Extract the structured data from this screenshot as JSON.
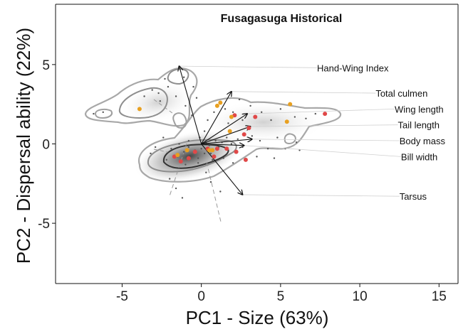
{
  "chart_data": {
    "type": "scatter",
    "title": "Fusagasuga Historical",
    "xlabel": "PC1 - Size (63%)",
    "ylabel": "PC2 - Dispersal ability (22%)",
    "xlim": [
      -9.2,
      16.2
    ],
    "ylim": [
      -8.8,
      8.8
    ],
    "x_ticks": [
      -5,
      0,
      5,
      10,
      15
    ],
    "y_ticks": [
      -5,
      0,
      5
    ],
    "grid": false,
    "colors": {
      "red_points": "#e04848",
      "orange_points": "#e8a020",
      "background_points": "#555555",
      "contour": "#9a9a9a",
      "core_contour": "#333333"
    },
    "vectors": [
      {
        "label": "Hand-Wing Index",
        "x": -1.4,
        "y": 4.9,
        "label_x": 7.3,
        "label_y": 4.8
      },
      {
        "label": "Total culmen",
        "x": 1.9,
        "y": 3.3,
        "label_x": 11.0,
        "label_y": 3.2
      },
      {
        "label": "Wing length",
        "x": 2.9,
        "y": 1.9,
        "label_x": 12.2,
        "label_y": 2.2
      },
      {
        "label": "Tail length",
        "x": 3.1,
        "y": 1.1,
        "label_x": 12.4,
        "label_y": 1.2
      },
      {
        "label": "Body mass",
        "x": 3.2,
        "y": 0.3,
        "label_x": 12.5,
        "label_y": 0.2
      },
      {
        "label": "Bill width",
        "x": 2.7,
        "y": -0.1,
        "label_x": 12.6,
        "label_y": -0.8
      },
      {
        "label": "Tarsus",
        "x": 2.6,
        "y": -3.2,
        "label_x": 12.5,
        "label_y": -3.3
      }
    ],
    "red_points": [
      [
        -1.3,
        -1.1
      ],
      [
        -0.8,
        -0.9
      ],
      [
        0.4,
        -0.3
      ],
      [
        0.8,
        -0.8
      ],
      [
        2.2,
        -0.5
      ],
      [
        2.8,
        -1.0
      ],
      [
        3.0,
        1.0
      ],
      [
        3.4,
        1.7
      ],
      [
        2.7,
        0.6
      ],
      [
        7.8,
        1.9
      ],
      [
        1.0,
        -0.3
      ],
      [
        -0.4,
        -0.5
      ],
      [
        1.6,
        -0.3
      ],
      [
        2.1,
        1.8
      ],
      [
        -1.7,
        -0.8
      ]
    ],
    "orange_points": [
      [
        -3.9,
        2.2
      ],
      [
        1.0,
        2.4
      ],
      [
        1.2,
        2.6
      ],
      [
        1.9,
        1.7
      ],
      [
        5.6,
        2.5
      ],
      [
        5.4,
        1.4
      ],
      [
        0.5,
        -0.4
      ],
      [
        -0.9,
        -0.4
      ],
      [
        -1.5,
        -0.7
      ],
      [
        1.8,
        0.8
      ],
      [
        0.7,
        -0.4
      ]
    ],
    "background_points": [
      [
        -1.9,
        -0.3
      ],
      [
        -1.5,
        -0.8
      ],
      [
        -1.1,
        -0.5
      ],
      [
        -0.8,
        -0.2
      ],
      [
        -0.6,
        -0.7
      ],
      [
        -0.4,
        -0.4
      ],
      [
        -0.2,
        -0.9
      ],
      [
        0.0,
        -0.3
      ],
      [
        0.2,
        -0.6
      ],
      [
        0.3,
        0.1
      ],
      [
        0.5,
        -0.1
      ],
      [
        0.6,
        -0.6
      ],
      [
        0.9,
        0.2
      ],
      [
        1.1,
        -0.2
      ],
      [
        1.3,
        0.1
      ],
      [
        1.6,
        0.4
      ],
      [
        1.9,
        0.0
      ],
      [
        2.3,
        0.3
      ],
      [
        2.6,
        -0.2
      ],
      [
        3.2,
        0.5
      ],
      [
        3.7,
        0.2
      ],
      [
        4.2,
        -0.3
      ],
      [
        4.8,
        0.4
      ],
      [
        -1.0,
        -1.3
      ],
      [
        -0.2,
        -1.2
      ],
      [
        0.7,
        -1.0
      ],
      [
        1.4,
        -0.9
      ],
      [
        2.0,
        -1.2
      ],
      [
        -2.2,
        -1.0
      ],
      [
        -3.6,
        3.0
      ],
      [
        -3.1,
        3.4
      ],
      [
        -2.6,
        2.7
      ],
      [
        -2.1,
        3.6
      ],
      [
        -1.6,
        3.0
      ],
      [
        -1.0,
        2.4
      ],
      [
        -0.6,
        1.8
      ],
      [
        -0.3,
        2.9
      ],
      [
        0.4,
        1.5
      ],
      [
        0.8,
        2.0
      ],
      [
        1.5,
        2.2
      ],
      [
        2.4,
        2.8
      ],
      [
        3.1,
        2.4
      ],
      [
        3.8,
        2.0
      ],
      [
        4.4,
        1.5
      ],
      [
        5.0,
        2.2
      ],
      [
        5.9,
        1.7
      ],
      [
        6.6,
        1.6
      ],
      [
        7.2,
        1.9
      ],
      [
        -6.2,
        2.0
      ],
      [
        -6.8,
        1.9
      ],
      [
        -2.7,
        3.2
      ],
      [
        -2.3,
        4.1
      ],
      [
        -1.1,
        4.2
      ],
      [
        -0.5,
        3.6
      ],
      [
        -2.0,
        -2.2
      ],
      [
        -1.6,
        -2.8
      ],
      [
        -1.2,
        -3.4
      ],
      [
        0.3,
        -1.8
      ],
      [
        0.6,
        -2.4
      ],
      [
        1.2,
        -3.0
      ],
      [
        2.0,
        2.0
      ],
      [
        -2.4,
        0.4
      ],
      [
        -2.9,
        -0.2
      ],
      [
        -3.2,
        -0.6
      ],
      [
        3.5,
        -0.8
      ],
      [
        4.6,
        -0.9
      ],
      [
        5.3,
        -0.3
      ],
      [
        0.2,
        0.8
      ],
      [
        -0.1,
        0.4
      ],
      [
        -0.8,
        0.2
      ],
      [
        -1.4,
        0.0
      ],
      [
        1.7,
        1.3
      ],
      [
        2.6,
        1.5
      ],
      [
        6.0,
        0.1
      ],
      [
        6.2,
        -0.4
      ]
    ]
  }
}
